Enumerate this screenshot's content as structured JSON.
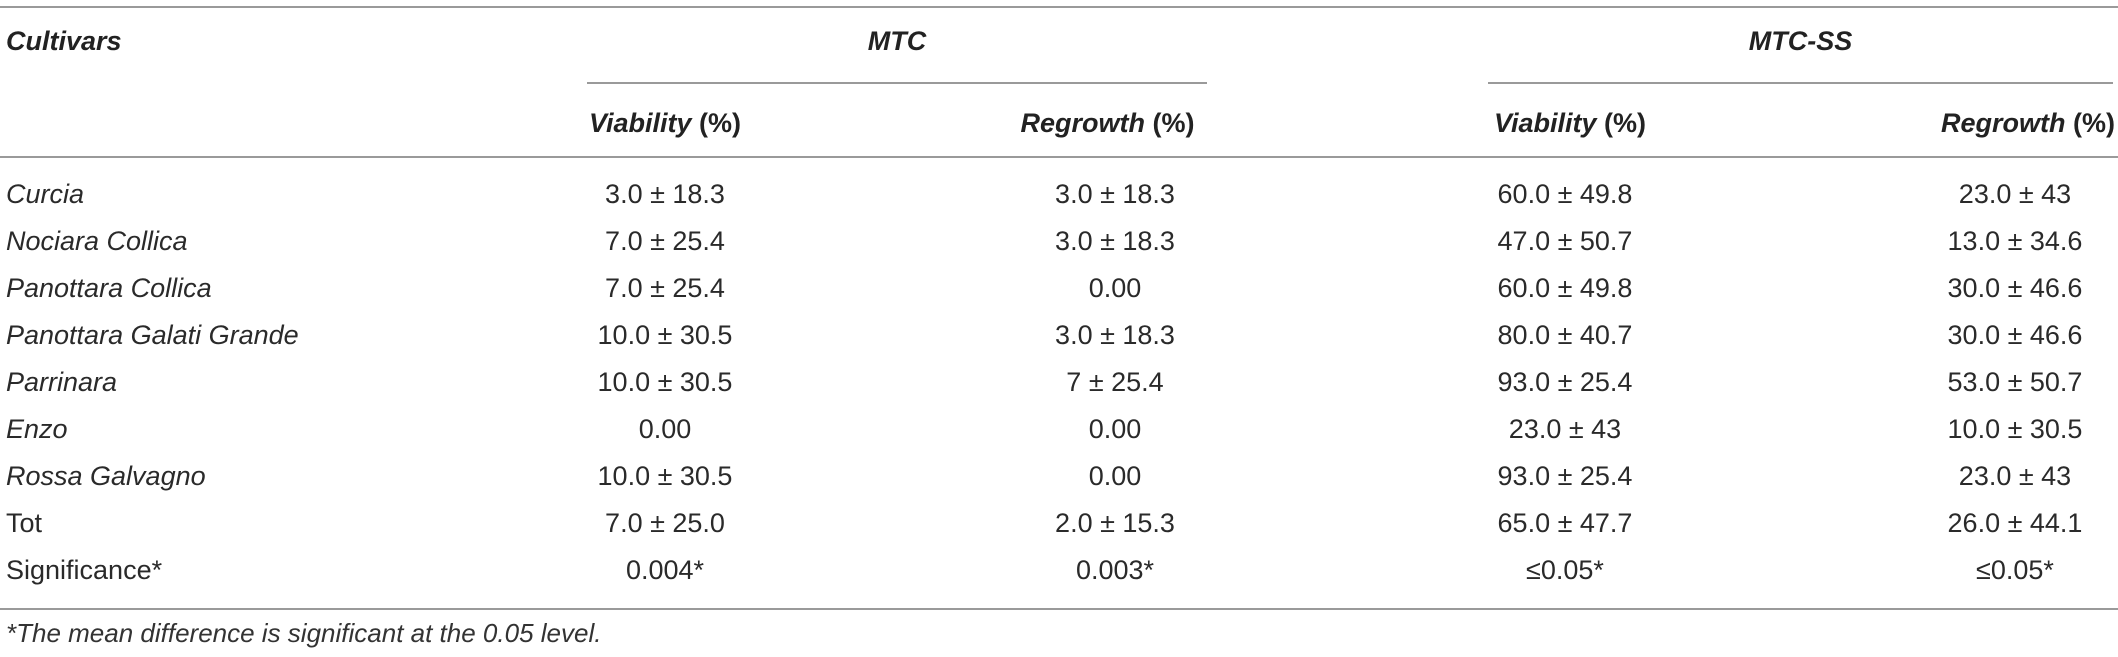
{
  "headers": {
    "cultivars": "Cultivars",
    "mtc": "MTC",
    "mtcss": "MTC-SS",
    "viability_word": "Viability",
    "regrowth_word": "Regrowth",
    "unit": "(%)"
  },
  "rows": [
    {
      "name": "Curcia",
      "mtc_viability": "3.0 ± 18.3",
      "mtc_regrowth": "3.0 ± 18.3",
      "mtcss_viability": "60.0 ± 49.8",
      "mtcss_regrowth": "23.0 ± 43"
    },
    {
      "name": "Nociara Collica",
      "mtc_viability": "7.0 ± 25.4",
      "mtc_regrowth": "3.0 ± 18.3",
      "mtcss_viability": "47.0 ± 50.7",
      "mtcss_regrowth": "13.0 ± 34.6"
    },
    {
      "name": "Panottara Collica",
      "mtc_viability": "7.0 ± 25.4",
      "mtc_regrowth": "0.00",
      "mtcss_viability": "60.0 ± 49.8",
      "mtcss_regrowth": "30.0 ± 46.6"
    },
    {
      "name": "Panottara Galati Grande",
      "mtc_viability": "10.0 ± 30.5",
      "mtc_regrowth": "3.0 ± 18.3",
      "mtcss_viability": "80.0 ± 40.7",
      "mtcss_regrowth": "30.0 ± 46.6"
    },
    {
      "name": "Parrinara",
      "mtc_viability": "10.0 ± 30.5",
      "mtc_regrowth": "7 ± 25.4",
      "mtcss_viability": "93.0 ± 25.4",
      "mtcss_regrowth": "53.0 ± 50.7"
    },
    {
      "name": "Enzo",
      "mtc_viability": "0.00",
      "mtc_regrowth": "0.00",
      "mtcss_viability": "23.0 ± 43",
      "mtcss_regrowth": "10.0 ± 30.5"
    },
    {
      "name": "Rossa Galvagno",
      "mtc_viability": "10.0 ± 30.5",
      "mtc_regrowth": "0.00",
      "mtcss_viability": "93.0 ± 25.4",
      "mtcss_regrowth": "23.0 ± 43"
    },
    {
      "name": "Tot",
      "mtc_viability": "7.0 ± 25.0",
      "mtc_regrowth": "2.0 ± 15.3",
      "mtcss_viability": "65.0 ± 47.7",
      "mtcss_regrowth": "26.0 ± 44.1"
    },
    {
      "name": "Significance*",
      "mtc_viability": "0.004*",
      "mtc_regrowth": "0.003*",
      "mtcss_viability": "≤0.05*",
      "mtcss_regrowth": "≤0.05*"
    }
  ],
  "footnote": "*The mean difference is significant at the 0.05 level."
}
